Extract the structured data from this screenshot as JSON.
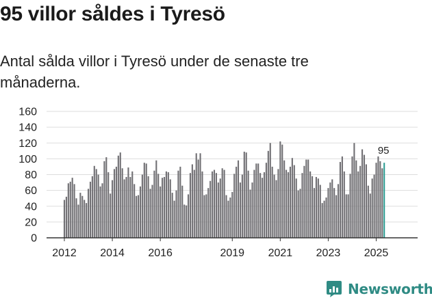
{
  "title": "95 villor såldes i Tyresö",
  "subtitle": "Antal sålda villor i Tyresö under de senaste tre månaderna.",
  "brand": {
    "name": "Newsworthy",
    "icon": "newsworthy-logo-icon",
    "color": "#2f8b84"
  },
  "colors": {
    "bar": "#706f73",
    "highlight": "#2e9d93",
    "grid": "#dddddd",
    "axis": "#333333"
  },
  "chart_data": {
    "type": "bar",
    "title": "",
    "xlabel": "",
    "ylabel": "",
    "ylim": [
      0,
      160
    ],
    "yticks": [
      0,
      20,
      40,
      60,
      80,
      100,
      120,
      140,
      160
    ],
    "grid": true,
    "legend": "none",
    "start_month": "2012-01",
    "x_ticks": [
      {
        "label": "2012",
        "month": "2012-01"
      },
      {
        "label": "2014",
        "month": "2014-01"
      },
      {
        "label": "2016",
        "month": "2016-01"
      },
      {
        "label": "2019",
        "month": "2019-01"
      },
      {
        "label": "2021",
        "month": "2021-01"
      },
      {
        "label": "2023",
        "month": "2023-01"
      },
      {
        "label": "2025",
        "month": "2025-01"
      }
    ],
    "values": [
      48,
      52,
      69,
      71,
      76,
      68,
      50,
      42,
      57,
      53,
      48,
      44,
      62,
      71,
      78,
      91,
      87,
      80,
      65,
      69,
      97,
      102,
      83,
      56,
      73,
      87,
      90,
      104,
      108,
      88,
      74,
      77,
      89,
      77,
      84,
      68,
      53,
      54,
      65,
      80,
      95,
      94,
      78,
      62,
      67,
      85,
      98,
      81,
      65,
      76,
      77,
      84,
      83,
      74,
      57,
      47,
      60,
      85,
      90,
      66,
      42,
      41,
      55,
      82,
      93,
      86,
      107,
      99,
      107,
      84,
      54,
      55,
      63,
      72,
      84,
      86,
      82,
      70,
      75,
      88,
      86,
      54,
      47,
      51,
      58,
      81,
      90,
      98,
      70,
      80,
      109,
      108,
      85,
      61,
      70,
      86,
      94,
      94,
      82,
      76,
      83,
      95,
      110,
      120,
      90,
      80,
      73,
      87,
      122,
      118,
      98,
      86,
      83,
      90,
      101,
      92,
      75,
      60,
      62,
      82,
      91,
      99,
      99,
      84,
      78,
      63,
      77,
      75,
      67,
      44,
      47,
      51,
      63,
      70,
      74,
      63,
      54,
      68,
      96,
      103,
      84,
      55,
      55,
      81,
      103,
      120,
      98,
      84,
      91,
      112,
      105,
      93,
      66,
      56,
      75,
      80,
      95,
      103,
      97,
      88,
      95
    ],
    "highlight_last": 1,
    "last_value_label": "95"
  }
}
